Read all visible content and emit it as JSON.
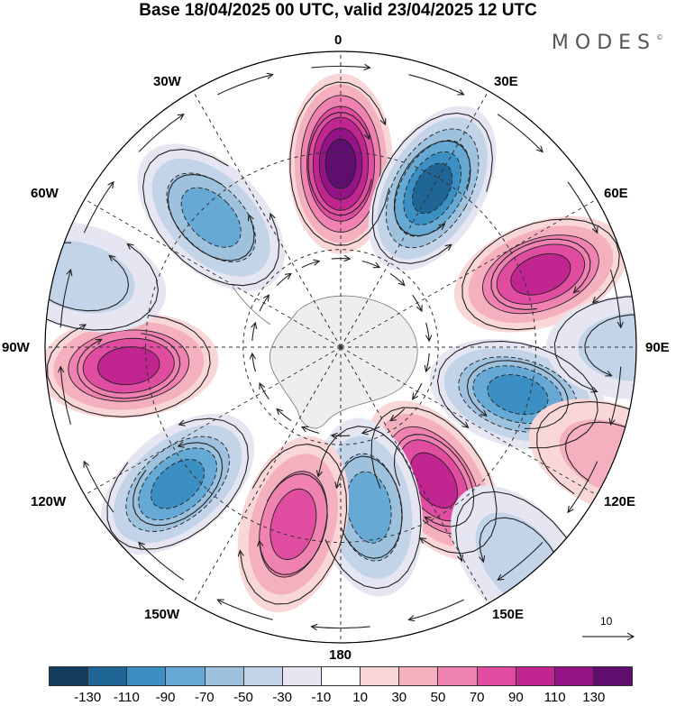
{
  "title": "Base 18/04/2025 00 UTC, valid 23/04/2025 12 UTC",
  "logo": "MODES",
  "logo_mark": "©",
  "longitude_labels": {
    "lon0": "0",
    "lon30e": "30E",
    "lon60e": "60E",
    "lon90e": "90E",
    "lon120e": "120E",
    "lon150e": "150E",
    "lon180": "180",
    "lon150w": "150W",
    "lon120w": "120W",
    "lon90w": "90W",
    "lon60w": "60W",
    "lon30w": "30W"
  },
  "reference_vector": "10",
  "colorbar": {
    "colors": [
      "#143c5c",
      "#1f6696",
      "#3c8fc2",
      "#66a9d4",
      "#9ec2de",
      "#c4d4e8",
      "#e6e6f2",
      "#ffffff",
      "#f9d6d8",
      "#f5b0c0",
      "#ef82b0",
      "#e04da0",
      "#c12590",
      "#961287",
      "#5f0d6f"
    ],
    "ticks": [
      "-130",
      "-110",
      "-90",
      "-70",
      "-50",
      "-30",
      "-10",
      "10",
      "30",
      "50",
      "70",
      "90",
      "110",
      "130"
    ]
  },
  "anomaly_centers": [
    {
      "lon": 0,
      "dist": 0.62,
      "value": 130
    },
    {
      "lon": 30,
      "dist": 0.62,
      "value": -110
    },
    {
      "lon": 70,
      "dist": 0.72,
      "value": 90
    },
    {
      "lon": 105,
      "dist": 0.62,
      "value": -90
    },
    {
      "lon": 145,
      "dist": 0.55,
      "value": 90
    },
    {
      "lon": 170,
      "dist": 0.55,
      "value": -70
    },
    {
      "lon": -165,
      "dist": 0.62,
      "value": 70
    },
    {
      "lon": -130,
      "dist": 0.72,
      "value": -90
    },
    {
      "lon": -95,
      "dist": 0.72,
      "value": 90
    },
    {
      "lon": -45,
      "dist": 0.62,
      "value": -70
    },
    {
      "lon": -75,
      "dist": 0.92,
      "value": -30
    },
    {
      "lon": 112,
      "dist": 1.0,
      "value": 30
    },
    {
      "lon": 90,
      "dist": 1.0,
      "value": -30
    },
    {
      "lon": 140,
      "dist": 0.95,
      "value": -30
    }
  ]
}
